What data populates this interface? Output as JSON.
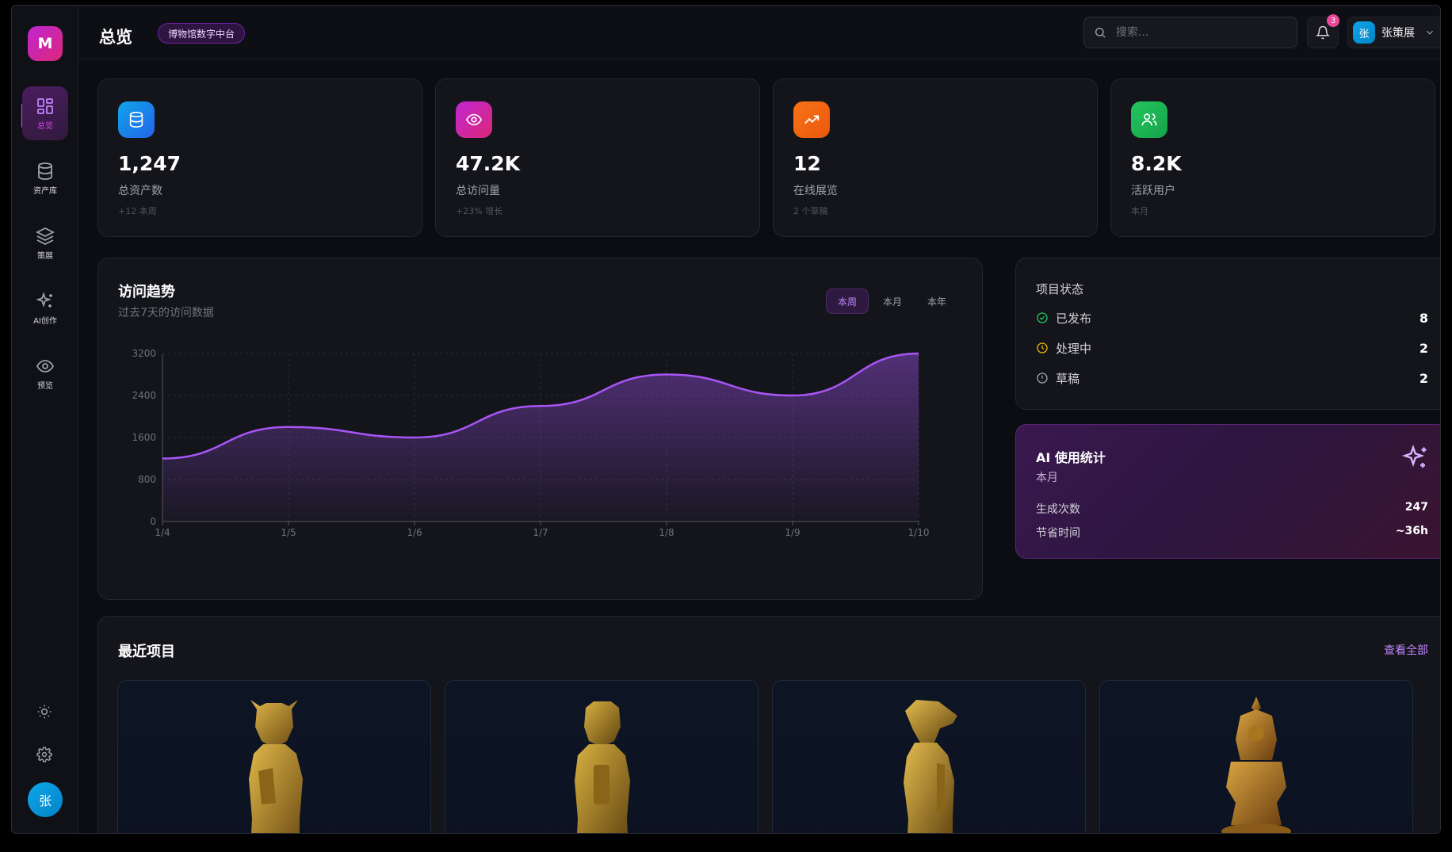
{
  "app": {
    "logo": "M"
  },
  "sidebar": {
    "items": [
      {
        "label": "总览",
        "icon": "dashboard-icon"
      },
      {
        "label": "资产库",
        "icon": "database-icon"
      },
      {
        "label": "策展",
        "icon": "layers-icon"
      },
      {
        "label": "AI创作",
        "icon": "sparkles-icon"
      },
      {
        "label": "预览",
        "icon": "eye-icon"
      }
    ],
    "bottom": {
      "theme_icon": "sun-icon",
      "settings_icon": "gear-icon",
      "avatar": "张"
    }
  },
  "header": {
    "title": "总览",
    "badge": "博物馆数字中台",
    "search_placeholder": "搜索...",
    "notifications": "3",
    "user_avatar": "张",
    "user_name": "张策展"
  },
  "stats": [
    {
      "value": "1,247",
      "label": "总资产数",
      "sub": "+12 本周",
      "icon": "database-icon",
      "color": "#0ea5e9"
    },
    {
      "value": "47.2K",
      "label": "总访问量",
      "sub": "+23% 增长",
      "icon": "eye-icon",
      "color": "#c026d3"
    },
    {
      "value": "12",
      "label": "在线展览",
      "sub": "2 个草稿",
      "icon": "trending-up-icon",
      "color": "#f97316"
    },
    {
      "value": "8.2K",
      "label": "活跃用户",
      "sub": "本月",
      "icon": "users-icon",
      "color": "#22c55e"
    }
  ],
  "trend": {
    "title": "访问趋势",
    "subtitle": "过去7天的访问数据",
    "ranges": [
      "本周",
      "本月",
      "本年"
    ],
    "active_range": "本周"
  },
  "chart_data": {
    "type": "area",
    "x": [
      "1/4",
      "1/5",
      "1/6",
      "1/7",
      "1/8",
      "1/9",
      "1/10"
    ],
    "series": [
      {
        "values": [
          1200,
          1800,
          1600,
          2200,
          2800,
          2400,
          3200
        ]
      }
    ],
    "ylim": [
      0,
      3200
    ],
    "yticks": [
      0,
      800,
      1600,
      2400,
      3200
    ],
    "grid": true,
    "color": "#a855f7"
  },
  "status": {
    "title": "项目状态",
    "rows": [
      {
        "name": "已发布",
        "value": "8",
        "icon": "check-circle-icon",
        "color": "#22c55e"
      },
      {
        "name": "处理中",
        "value": "2",
        "icon": "clock-icon",
        "color": "#eab308"
      },
      {
        "name": "草稿",
        "value": "2",
        "icon": "alert-circle-icon",
        "color": "#a1a1aa"
      }
    ]
  },
  "ai": {
    "title": "AI 使用统计",
    "subtitle": "本月",
    "rows": [
      {
        "name": "生成次数",
        "value": "247"
      },
      {
        "name": "节省时间",
        "value": "~36h"
      }
    ]
  },
  "recent": {
    "title": "最近项目",
    "view_all": "查看全部"
  }
}
